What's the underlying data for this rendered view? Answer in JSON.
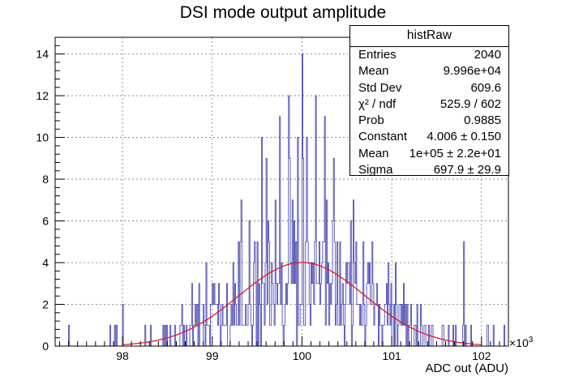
{
  "chart_data": {
    "type": "bar",
    "histogram": "histRaw",
    "title": "DSI mode output amplitude",
    "xlabel": "ADC out (ADU)",
    "ylabel": "",
    "x_multiplier_label": "×10",
    "x_multiplier_exp": "3",
    "xlim": [
      97250,
      102300
    ],
    "ylim": [
      0,
      14.8
    ],
    "x_ticks": [
      "98",
      "99",
      "100",
      "101",
      "102"
    ],
    "x_tick_values": [
      98000,
      99000,
      100000,
      101000,
      102000
    ],
    "y_ticks": [
      "0",
      "2",
      "4",
      "6",
      "8",
      "10",
      "12",
      "14"
    ],
    "y_tick_values": [
      0,
      2,
      4,
      6,
      8,
      10,
      12,
      14
    ],
    "grid": true,
    "bin_width": 10,
    "hist_color": "#3a3aae",
    "fit_color": "#e41a1c",
    "fit": {
      "function": "gaus",
      "constant": 4.006,
      "mean": 100000,
      "sigma": 697.9
    },
    "stats": {
      "name": "histRaw",
      "rows": [
        {
          "key": "Entries",
          "value": "2040"
        },
        {
          "key": "Mean",
          "value": "9.996e+04"
        },
        {
          "key": "Std Dev",
          "value": "609.6"
        },
        {
          "key": "χ² / ndf",
          "value": "525.9 / 602"
        },
        {
          "key": "Prob",
          "value": "0.9885"
        },
        {
          "key": "Constant",
          "value": "4.006 ± 0.150"
        },
        {
          "key": "Mean",
          "value": "1e+05 ± 2.2e+01"
        },
        {
          "key": "Sigma",
          "value": "697.9 ± 29.9"
        }
      ]
    },
    "peaks": [
      {
        "x": 100000,
        "count": 14
      },
      {
        "x": 99850,
        "count": 12
      },
      {
        "x": 100150,
        "count": 12
      },
      {
        "x": 99750,
        "count": 11
      },
      {
        "x": 100250,
        "count": 11
      },
      {
        "x": 99550,
        "count": 10
      },
      {
        "x": 99950,
        "count": 10
      },
      {
        "x": 100050,
        "count": 10
      },
      {
        "x": 100350,
        "count": 9
      },
      {
        "x": 101800,
        "count": 5
      },
      {
        "x": 98000,
        "count": 2
      },
      {
        "x": 97400,
        "count": 1
      },
      {
        "x": 102250,
        "count": 1
      }
    ]
  }
}
